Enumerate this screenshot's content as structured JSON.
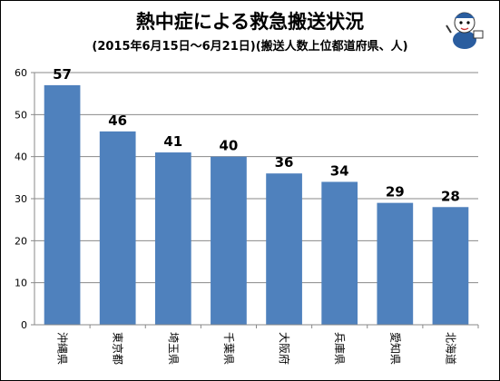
{
  "chart_data": {
    "type": "bar",
    "title": "熱中症による救急搬送状況",
    "subtitle": "(2015年6月15日～6月21日)(搬送人数上位都道府県、人)",
    "categories": [
      "沖縄県",
      "東京都",
      "埼玉県",
      "千葉県",
      "大阪府",
      "兵庫県",
      "愛知県",
      "北海道"
    ],
    "values": [
      57,
      46,
      41,
      40,
      36,
      34,
      29,
      28
    ],
    "ylim": [
      0,
      60
    ],
    "yticks": [
      0,
      10,
      20,
      30,
      40,
      50,
      60
    ],
    "grid": true,
    "legend": "none",
    "bar_color": "#4f81bd",
    "grid_color": "#898989"
  }
}
